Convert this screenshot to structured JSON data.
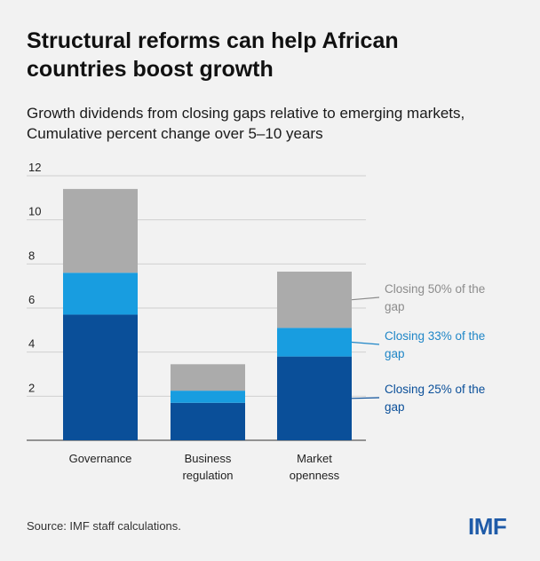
{
  "header": {
    "title_line1": "Structural reforms can help African",
    "title_line2": "countries boost growth",
    "subtitle_line1": "Growth dividends from closing gaps relative to emerging markets,",
    "subtitle_line2": "Cumulative percent change over 5–10 years"
  },
  "footer": {
    "source": "Source: IMF staff calculations.",
    "logo_text": "IMF"
  },
  "chart_data": {
    "type": "bar",
    "stacked": true,
    "categories": [
      [
        "Governance"
      ],
      [
        "Business",
        "regulation"
      ],
      [
        "Market",
        "openness"
      ]
    ],
    "series": [
      {
        "name": "Closing 25% of the gap",
        "color": "#0a4f99",
        "values": [
          5.7,
          1.7,
          3.8
        ]
      },
      {
        "name": "Closing 33% of the gap",
        "color": "#189de0",
        "values": [
          1.9,
          0.55,
          1.3
        ]
      },
      {
        "name": "Closing 50% of the gap",
        "color": "#ababab",
        "values": [
          3.8,
          1.2,
          2.55
        ]
      }
    ],
    "legend": [
      {
        "lines": [
          "Closing 50% of the",
          "gap"
        ],
        "color": "#8c8c8c",
        "series": 2
      },
      {
        "lines": [
          "Closing 33% of the",
          "gap"
        ],
        "color": "#1f86c7",
        "series": 1
      },
      {
        "lines": [
          "Closing 25% of the",
          "gap"
        ],
        "color": "#0a4f99",
        "series": 0
      }
    ],
    "legend_placement": "right, attached to the Market openness bar",
    "ylim": [
      0,
      12
    ],
    "yticks": [
      2,
      4,
      6,
      8,
      10,
      12
    ],
    "grid": true,
    "xlabel": "",
    "ylabel": ""
  }
}
